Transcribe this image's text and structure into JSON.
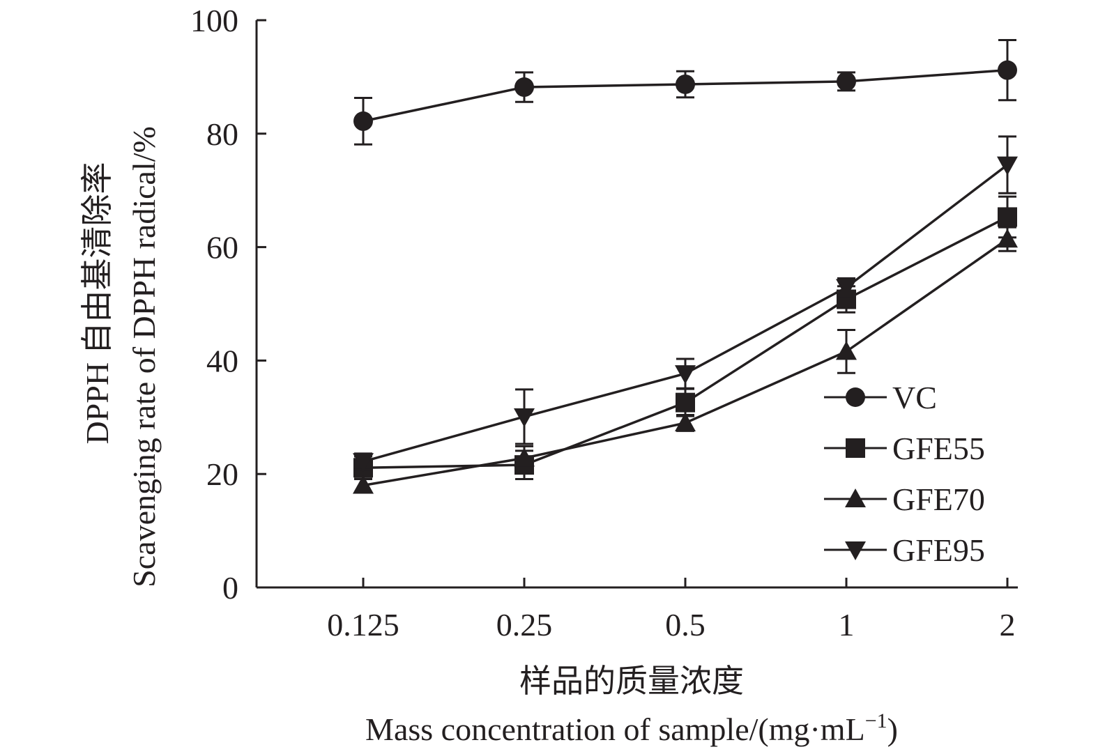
{
  "chart_data": {
    "type": "line",
    "title": "",
    "xlabel_cn": "样品的质量浓度",
    "xlabel_en": "Mass concentration of sample/(mg·mL",
    "xlabel_en_sup": "−1",
    "xlabel_en_end": ")",
    "ylabel_cn": "DPPH 自由基清除率",
    "ylabel_en": "Scavenging rate of DPPH radical/%",
    "categories": [
      "0.125",
      "0.25",
      "0.5",
      "1",
      "2"
    ],
    "ylim": [
      0,
      100
    ],
    "yticks": [
      0,
      20,
      40,
      60,
      80,
      100
    ],
    "ytick_labels": [
      "0",
      "20",
      "40",
      "60",
      "80",
      "100"
    ],
    "grid": false,
    "legend_position": "bottom-right",
    "series": [
      {
        "name": "VC",
        "marker": "circle",
        "values": [
          82.2,
          88.2,
          88.7,
          89.2,
          91.2
        ],
        "errors": [
          4.1,
          2.6,
          2.3,
          1.6,
          5.3
        ]
      },
      {
        "name": "GFE55",
        "marker": "square",
        "values": [
          21.1,
          21.6,
          32.6,
          50.8,
          65.3
        ],
        "errors": [
          2.0,
          2.5,
          2.4,
          2.3,
          3.6
        ]
      },
      {
        "name": "GFE70",
        "marker": "triangle-up",
        "values": [
          18.0,
          22.8,
          29.0,
          41.6,
          61.4
        ],
        "errors": [
          1.2,
          2.1,
          1.4,
          3.8,
          2.1
        ]
      },
      {
        "name": "GFE95",
        "marker": "triangle-down",
        "values": [
          22.2,
          30.1,
          37.7,
          52.9,
          74.5
        ],
        "errors": [
          1.4,
          4.8,
          2.6,
          1.6,
          5.0
        ]
      }
    ]
  }
}
